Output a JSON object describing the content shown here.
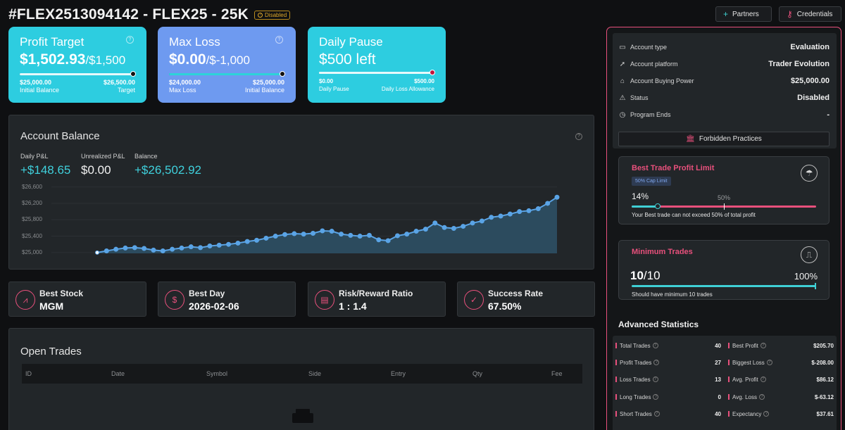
{
  "header": {
    "title": "#FLEX2513094142 - FLEX25 - 25K",
    "status": "Disabled",
    "partners_label": "Partners",
    "credentials_label": "Credentials"
  },
  "cards": {
    "profit_target": {
      "title": "Profit Target",
      "value": "$1,502.93",
      "suffix": "/$1,500",
      "left_value": "$25,000.00",
      "left_label": "Initial Balance",
      "right_value": "$26,500.00",
      "right_label": "Target",
      "progress": 1.0
    },
    "max_loss": {
      "title": "Max Loss",
      "value": "$0.00",
      "suffix": "/$-1,000",
      "left_value": "$24,000.00",
      "left_label": "Max Loss",
      "right_value": "$25,000.00",
      "right_label": "Initial Balance",
      "progress": 1.0
    },
    "daily_pause": {
      "title": "Daily Pause",
      "value": "$500 left",
      "left_value": "$0.00",
      "left_label": "Daily Pause",
      "right_value": "$500.00",
      "right_label": "Daily Loss Allowance",
      "progress": 1.0
    }
  },
  "balance": {
    "title": "Account Balance",
    "daily_pnl_label": "Daily P&L",
    "daily_pnl": "+$148.65",
    "unrealized_label": "Unrealized P&L",
    "unrealized": "$0.00",
    "balance_label": "Balance",
    "balance": "+$26,502.92"
  },
  "chart_data": {
    "type": "area",
    "y_ticks": [
      "$26,600",
      "$26,200",
      "$25,800",
      "$25,400",
      "$25,000"
    ],
    "ylim": [
      24980,
      26680
    ],
    "values": [
      25000,
      25040,
      25080,
      25110,
      25120,
      25100,
      25060,
      25040,
      25080,
      25110,
      25140,
      25120,
      25160,
      25180,
      25200,
      25230,
      25270,
      25300,
      25350,
      25400,
      25440,
      25460,
      25450,
      25470,
      25530,
      25520,
      25450,
      25420,
      25400,
      25420,
      25310,
      25290,
      25410,
      25450,
      25520,
      25570,
      25720,
      25610,
      25590,
      25640,
      25720,
      25770,
      25860,
      25890,
      25940,
      26000,
      26020,
      26070,
      26200,
      26350
    ]
  },
  "stats_cards": [
    {
      "label": "Best Stock",
      "value": "MGM",
      "icon": "chart-icon"
    },
    {
      "label": "Best Day",
      "value": "2026-02-06",
      "icon": "dollar-icon"
    },
    {
      "label": "Risk/Reward Ratio",
      "value": "1 : 1.4",
      "icon": "calculator-icon"
    },
    {
      "label": "Success Rate",
      "value": "67.50%",
      "icon": "check-icon"
    }
  ],
  "open_trades": {
    "title": "Open Trades",
    "columns": [
      "ID",
      "Date",
      "Symbol",
      "Side",
      "Entry",
      "Qty",
      "Fee"
    ]
  },
  "account": {
    "rows": [
      {
        "label": "Account type",
        "value": "Evaluation"
      },
      {
        "label": "Account platform",
        "value": "Trader Evolution"
      },
      {
        "label": "Account Buying Power",
        "value": "$25,000.00"
      },
      {
        "label": "Status",
        "value": "Disabled"
      },
      {
        "label": "Program Ends",
        "value": "-"
      }
    ],
    "forbidden_label": "Forbidden Practices"
  },
  "best_trade": {
    "title": "Best Trade Profit Limit",
    "tag": "50% Cap Limit",
    "value": "14%",
    "marker": "50%",
    "progress": 0.14,
    "note": "Your Best trade can not exceed 50% of total profit"
  },
  "min_trades": {
    "title": "Minimum Trades",
    "value": "10",
    "total": "/10",
    "percent": "100%",
    "progress": 1.0,
    "note": "Should have minimum 10 trades"
  },
  "advanced": {
    "title": "Advanced Statistics",
    "left": [
      {
        "label": "Total Trades",
        "value": "40"
      },
      {
        "label": "Profit Trades",
        "value": "27"
      },
      {
        "label": "Loss Trades",
        "value": "13"
      },
      {
        "label": "Long Trades",
        "value": "0"
      },
      {
        "label": "Short Trades",
        "value": "40"
      }
    ],
    "right": [
      {
        "label": "Best Profit",
        "value": "$205.70"
      },
      {
        "label": "Biggest Loss",
        "value": "$-208.00"
      },
      {
        "label": "Avg. Profit",
        "value": "$86.12"
      },
      {
        "label": "Avg. Loss",
        "value": "$-63.12"
      },
      {
        "label": "Expectancy",
        "value": "$37.61"
      }
    ]
  }
}
